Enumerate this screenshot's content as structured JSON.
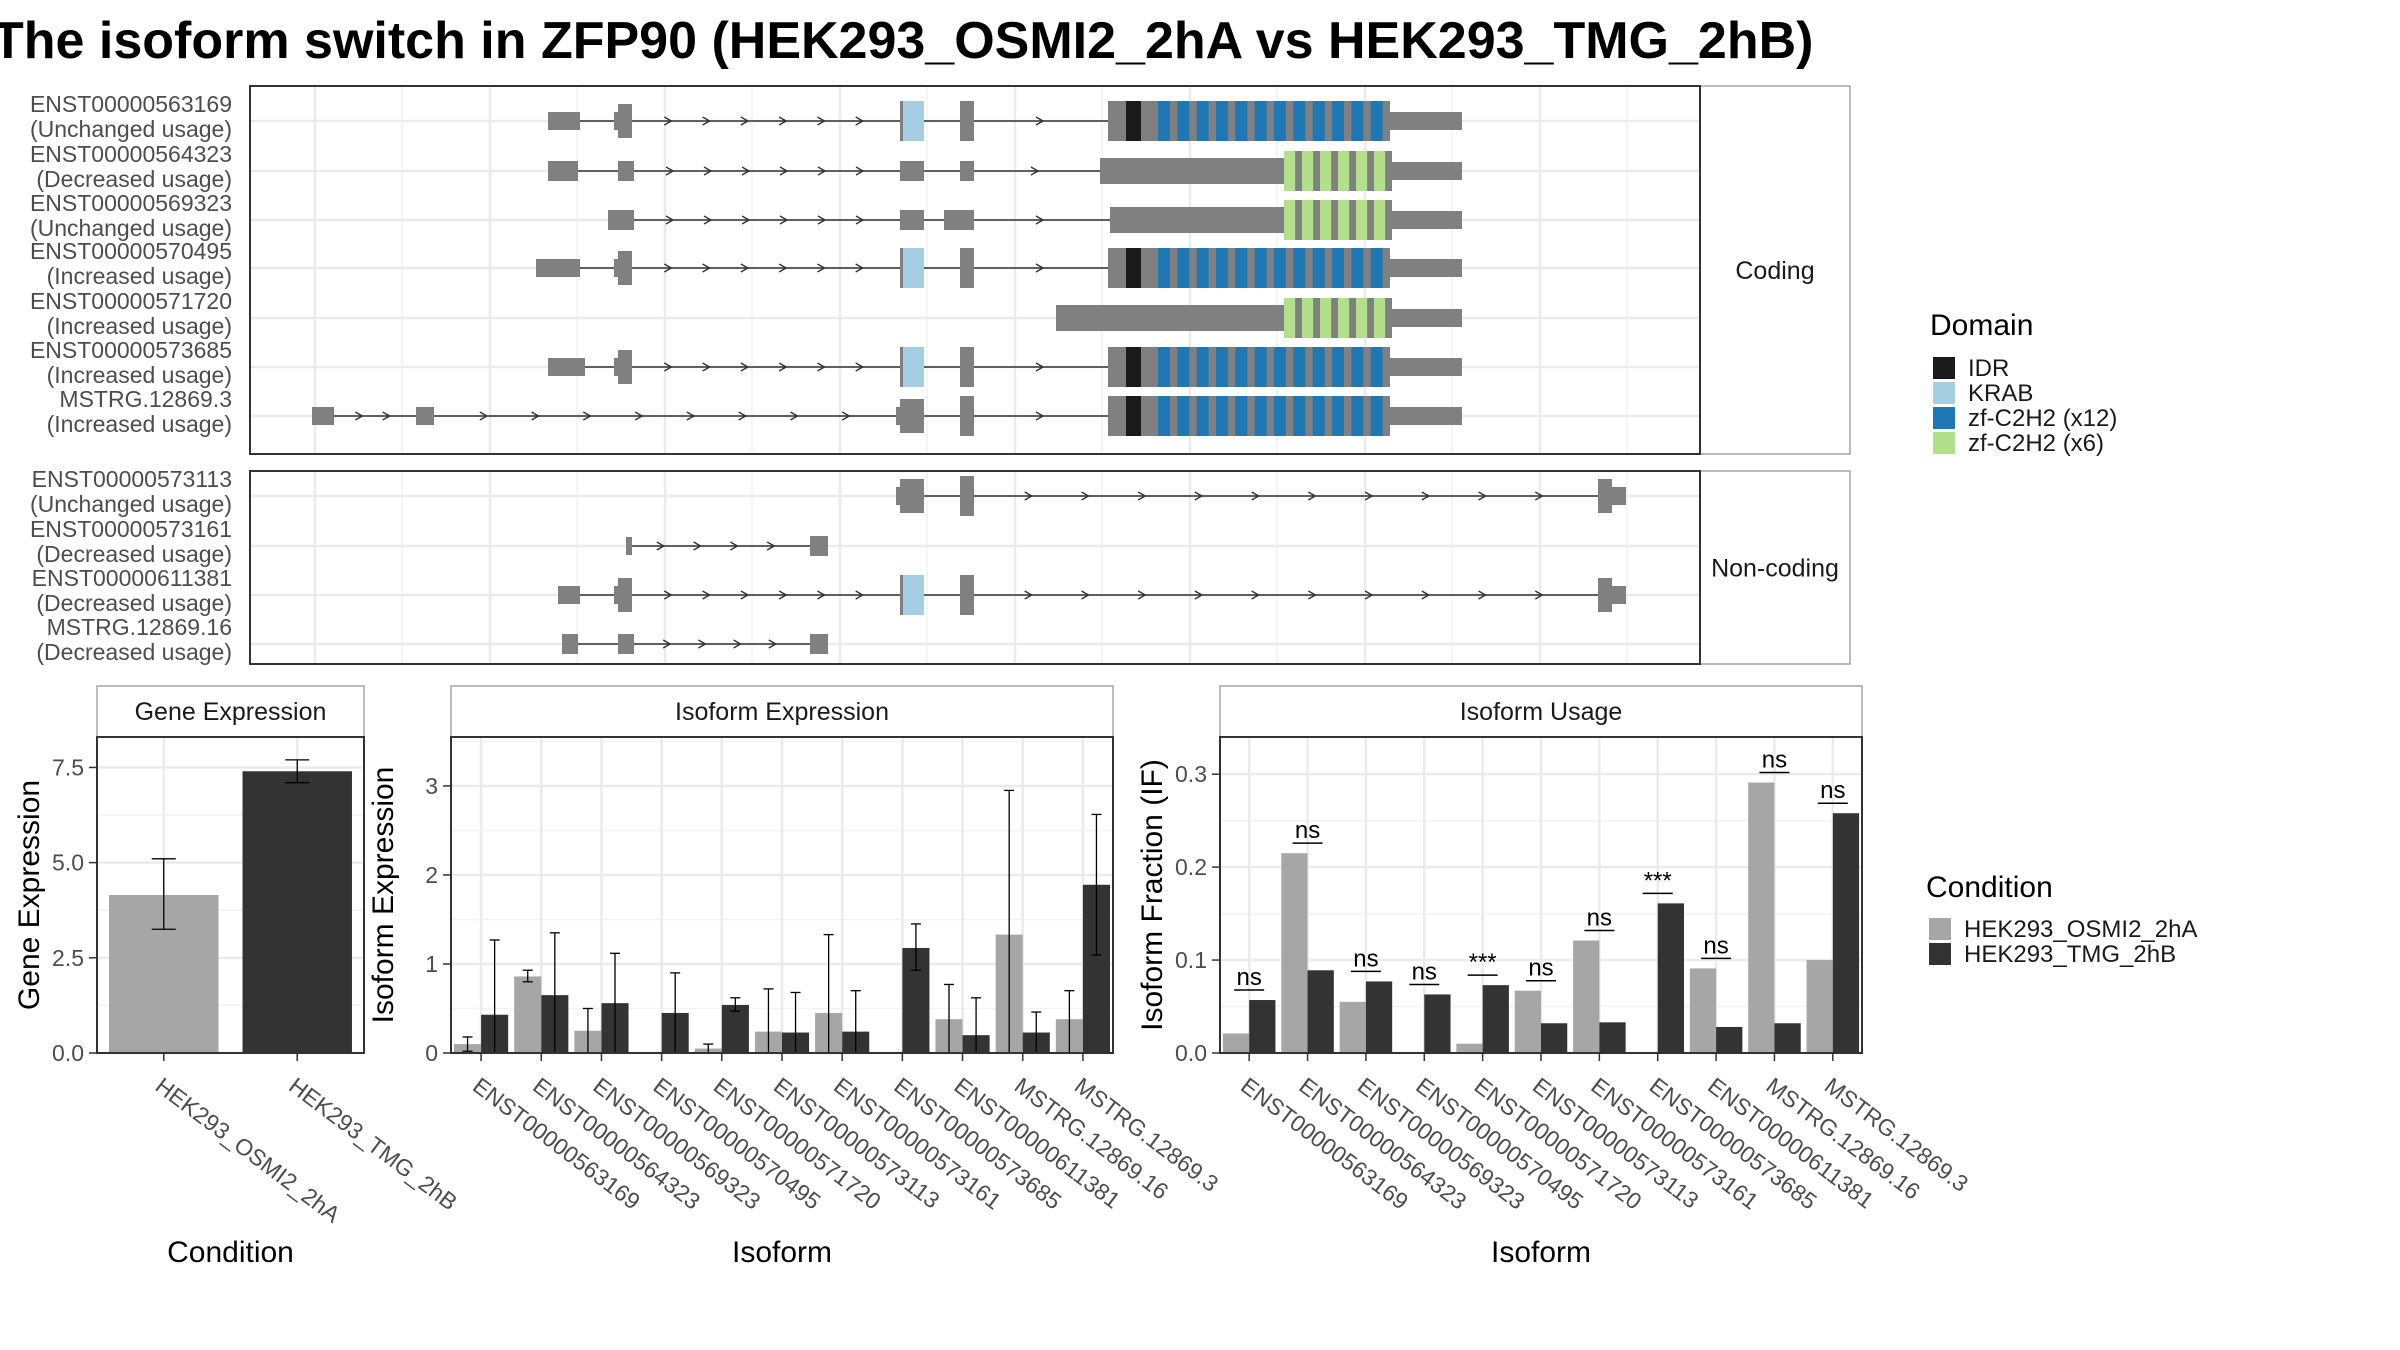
{
  "title": "The isoform switch in ZFP90 (HEK293_OSMI2_2hA vs HEK293_TMG_2hB)",
  "colors": {
    "exon": "#808080",
    "condition_a": "#a6a6a6",
    "condition_b": "#333333",
    "grid": "#ebebeb",
    "panel_border": "#333333"
  },
  "domain_legend": {
    "title": "Domain",
    "items": [
      {
        "label": "IDR",
        "color": "#1a1a1a"
      },
      {
        "label": "KRAB",
        "color": "#a6cee3"
      },
      {
        "label": "zf-C2H2 (x12)",
        "color": "#1f78b4"
      },
      {
        "label": "zf-C2H2 (x6)",
        "color": "#b2df8a"
      }
    ]
  },
  "condition_legend": {
    "title": "Condition",
    "items": [
      {
        "label": "HEK293_OSMI2_2hA",
        "color": "#a6a6a6"
      },
      {
        "label": "HEK293_TMG_2hB",
        "color": "#333333"
      }
    ]
  },
  "transcript_panels": [
    {
      "strip": "Coding",
      "transcripts": [
        {
          "id": "ENST00000563169",
          "usage": "(Unchanged usage)"
        },
        {
          "id": "ENST00000564323",
          "usage": "(Decreased usage)"
        },
        {
          "id": "ENST00000569323",
          "usage": "(Unchanged usage)"
        },
        {
          "id": "ENST00000570495",
          "usage": "(Increased usage)"
        },
        {
          "id": "ENST00000571720",
          "usage": "(Increased usage)"
        },
        {
          "id": "ENST00000573685",
          "usage": "(Increased usage)"
        },
        {
          "id": "MSTRG.12869.3",
          "usage": "(Increased usage)"
        }
      ]
    },
    {
      "strip": "Non-coding",
      "transcripts": [
        {
          "id": "ENST00000573113",
          "usage": "(Unchanged usage)"
        },
        {
          "id": "ENST00000573161",
          "usage": "(Decreased usage)"
        },
        {
          "id": "ENST00000611381",
          "usage": "(Decreased usage)"
        },
        {
          "id": "MSTRG.12869.16",
          "usage": "(Decreased usage)"
        }
      ]
    }
  ],
  "chart_data": [
    {
      "type": "bar",
      "title": "Gene Expression",
      "xlabel": "Condition",
      "ylabel": "Gene Expression",
      "ylim": [
        0,
        8.3
      ],
      "yticks": [
        0.0,
        2.5,
        5.0,
        7.5
      ],
      "ytick_labels": [
        "0.0",
        "2.5",
        "5.0",
        "7.5"
      ],
      "categories": [
        "HEK293_OSMI2_2hA",
        "HEK293_TMG_2hB"
      ],
      "values": [
        4.15,
        7.4
      ],
      "errors": [
        [
          3.25,
          5.1
        ],
        [
          7.1,
          7.7
        ]
      ],
      "grid": true,
      "legend": "none"
    },
    {
      "type": "bar",
      "title": "Isoform Expression",
      "xlabel": "Isoform",
      "ylabel": "Isoform Expression",
      "ylim": [
        0,
        3.55
      ],
      "yticks": [
        0,
        1,
        2,
        3
      ],
      "ytick_labels": [
        "0",
        "1",
        "2",
        "3"
      ],
      "categories": [
        "ENST00000563169",
        "ENST00000564323",
        "ENST00000569323",
        "ENST00000570495",
        "ENST00000571720",
        "ENST00000573113",
        "ENST00000573161",
        "ENST00000573685",
        "ENST00000611381",
        "MSTRG.12869.16",
        "MSTRG.12869.3"
      ],
      "series": [
        {
          "name": "HEK293_OSMI2_2hA",
          "values": [
            0.1,
            0.86,
            0.25,
            0.0,
            0.05,
            0.24,
            0.45,
            0.0,
            0.38,
            1.33,
            0.38
          ],
          "errors": [
            [
              0.02,
              0.18
            ],
            [
              0.8,
              0.93
            ],
            [
              0.0,
              0.5
            ],
            [
              0.0,
              0.0
            ],
            [
              0.0,
              0.1
            ],
            [
              0.0,
              0.72
            ],
            [
              0.0,
              1.33
            ],
            [
              0.0,
              0.0
            ],
            [
              0.0,
              0.77
            ],
            [
              0.0,
              2.95
            ],
            [
              0.0,
              0.7
            ]
          ]
        },
        {
          "name": "HEK293_TMG_2hB",
          "values": [
            0.43,
            0.65,
            0.56,
            0.45,
            0.54,
            0.23,
            0.24,
            1.18,
            0.2,
            0.23,
            1.89
          ],
          "errors": [
            [
              0.0,
              1.27
            ],
            [
              0.0,
              1.35
            ],
            [
              0.0,
              1.12
            ],
            [
              0.0,
              0.9
            ],
            [
              0.47,
              0.62
            ],
            [
              0.0,
              0.68
            ],
            [
              0.0,
              0.7
            ],
            [
              0.93,
              1.45
            ],
            [
              0.0,
              0.62
            ],
            [
              0.0,
              0.46
            ],
            [
              1.1,
              2.68
            ]
          ]
        }
      ],
      "grid": true,
      "legend": "right"
    },
    {
      "type": "bar",
      "title": "Isoform Usage",
      "xlabel": "Isoform",
      "ylabel": "Isoform Fraction (IF)",
      "ylim": [
        0,
        0.34
      ],
      "yticks": [
        0.0,
        0.1,
        0.2,
        0.3
      ],
      "ytick_labels": [
        "0.0",
        "0.1",
        "0.2",
        "0.3"
      ],
      "categories": [
        "ENST00000563169",
        "ENST00000564323",
        "ENST00000569323",
        "ENST00000570495",
        "ENST00000571720",
        "ENST00000573113",
        "ENST00000573161",
        "ENST00000573685",
        "ENST00000611381",
        "MSTRG.12869.16",
        "MSTRG.12869.3"
      ],
      "series": [
        {
          "name": "HEK293_OSMI2_2hA",
          "values": [
            0.021,
            0.215,
            0.055,
            0.0,
            0.01,
            0.067,
            0.121,
            0.0,
            0.091,
            0.291,
            0.1
          ]
        },
        {
          "name": "HEK293_TMG_2hB",
          "values": [
            0.057,
            0.089,
            0.077,
            0.063,
            0.073,
            0.032,
            0.033,
            0.161,
            0.028,
            0.032,
            0.258
          ]
        }
      ],
      "significance": [
        "ns",
        "ns",
        "ns",
        "ns",
        "***",
        "ns",
        "ns",
        "***",
        "ns",
        "ns",
        "ns"
      ],
      "grid": true,
      "legend": "right"
    }
  ]
}
